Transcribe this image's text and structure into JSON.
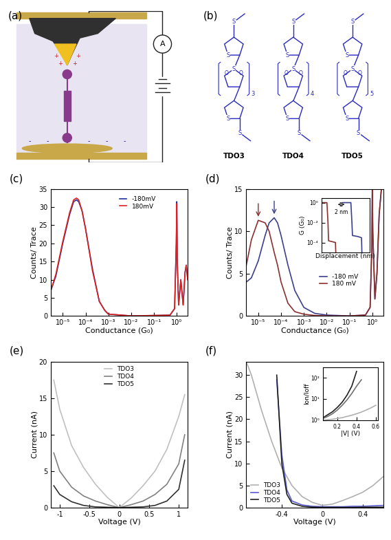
{
  "diagrams": [
    {
      "title": "(a)",
      "ammeter": "A",
      "charges": [
        "+",
        "-"
      ]
    },
    {
      "title": "(b)",
      "atoms": [
        "S",
        "O"
      ],
      "molecules": [
        {
          "label": "TDO3",
          "n": 3
        },
        {
          "label": "TDO4",
          "n": 4
        },
        {
          "label": "TDO5",
          "n": 5
        }
      ]
    }
  ],
  "chart_data": [
    {
      "type": "line",
      "title": "(c)",
      "xlabel": "Conductance (G₀)",
      "ylabel": "Counts/ Trace",
      "log": "x",
      "legend": "upper right",
      "x": [
        3e-06,
        5e-06,
        1e-05,
        2e-05,
        3e-05,
        4e-05,
        5e-05,
        7e-05,
        0.0001,
        0.0002,
        0.0004,
        0.0007,
        0.001,
        0.01,
        0.5,
        0.8,
        0.95,
        1.0,
        1.05,
        1.2,
        1.5,
        1.9,
        2.3,
        2.6,
        3.0
      ],
      "series": [
        {
          "name": "-180mV",
          "color": "#1f2f9f",
          "values": [
            7,
            11,
            20,
            28,
            31.5,
            32,
            31.5,
            29,
            24,
            13,
            4,
            1.5,
            0.5,
            0,
            0.2,
            2,
            20,
            31.5,
            15,
            3,
            10,
            3,
            12,
            14,
            10
          ]
        },
        {
          "name": "180mV",
          "color": "#e0201c",
          "values": [
            7,
            11.5,
            20.5,
            28.5,
            32,
            32.5,
            32,
            29,
            24,
            12.5,
            4,
            1.5,
            0.5,
            0,
            0.2,
            2,
            20,
            31,
            15,
            3,
            10,
            3,
            12,
            14,
            10
          ]
        }
      ],
      "xlim": [
        3e-06,
        3.0
      ],
      "xticks": [
        {
          "value": 1e-05,
          "label": "10⁻⁵"
        },
        {
          "value": 0.0001,
          "label": "10⁻⁴"
        },
        {
          "value": 0.001,
          "label": "10⁻³"
        },
        {
          "value": 0.01,
          "label": "10⁻²"
        },
        {
          "value": 0.1,
          "label": "10⁻¹"
        },
        {
          "value": 1,
          "label": "10⁰"
        }
      ],
      "ylim": [
        0,
        35
      ],
      "yticks": [
        0,
        5,
        10,
        15,
        20,
        25,
        30,
        35
      ]
    },
    {
      "type": "line",
      "title": "(d)",
      "xlabel": "Conductance (G₀)",
      "ylabel": "Counts/ Trace",
      "log": "x",
      "legend": "center right",
      "x": [
        3e-06,
        5e-06,
        1e-05,
        2e-05,
        3e-05,
        5e-05,
        7e-05,
        0.0001,
        0.0002,
        0.0004,
        0.001,
        0.003,
        0.01,
        0.1,
        0.5,
        0.8,
        0.95,
        1.0,
        1.05,
        1.3,
        1.6,
        2.0,
        2.5,
        3.0
      ],
      "series": [
        {
          "name": "-180 mV",
          "color": "#3b3f8c",
          "values": [
            4,
            4.5,
            6.5,
            9.5,
            11,
            11.6,
            11,
            9.5,
            6,
            3,
            1,
            0.3,
            0.1,
            0,
            0.1,
            1,
            8,
            15,
            10,
            2,
            5,
            12,
            15,
            15
          ]
        },
        {
          "name": "180 mV",
          "color": "#8c2f2f",
          "values": [
            6,
            9,
            11.3,
            11,
            10,
            7.5,
            6,
            4,
            1.5,
            0.5,
            0.2,
            0.05,
            0,
            0,
            0.1,
            1,
            8,
            15,
            10,
            2,
            5,
            12,
            15,
            15
          ]
        }
      ],
      "xlim": [
        3e-06,
        3.0
      ],
      "xticks": [
        {
          "value": 1e-05,
          "label": "10⁻⁵"
        },
        {
          "value": 0.0001,
          "label": "10⁻⁴"
        },
        {
          "value": 0.001,
          "label": "10⁻³"
        },
        {
          "value": 0.01,
          "label": "10⁻²"
        },
        {
          "value": 0.1,
          "label": "10⁻¹"
        },
        {
          "value": 1,
          "label": "10⁰"
        }
      ],
      "ylim": [
        0,
        15
      ],
      "yticks": [
        0,
        5,
        10,
        15
      ],
      "inset": {
        "type": "line",
        "xlabel": "Displacement (nm)",
        "ylabel": "G (G₀)",
        "log": "y",
        "tick_labels": "y",
        "annotations": [
          "2 nm"
        ],
        "series": [
          {
            "color": "#8c2f2f",
            "x": [
              0,
              1.0,
              1.2,
              1.3,
              2.0,
              2.6,
              2.7
            ],
            "values": [
              1,
              1,
              0.01,
              0.00015,
              0.00012,
              0.0001,
              3e-06
            ]
          },
          {
            "color": "#3b3f8c",
            "x": [
              4,
              5.5,
              5.7,
              5.8,
              6.8,
              7.5,
              7.6
            ],
            "values": [
              1,
              1,
              0.01,
              0.0005,
              0.0004,
              0.0003,
              3e-06
            ]
          }
        ],
        "xlim": [
          0,
          9
        ],
        "ylim": [
          1e-05,
          3
        ],
        "yticks": [
          {
            "value": 0.0001,
            "label": "10⁻⁴"
          },
          {
            "value": 0.01,
            "label": "10⁻²"
          },
          {
            "value": 1,
            "label": "10⁰"
          }
        ]
      }
    },
    {
      "type": "line",
      "title": "(e)",
      "xlabel": "Voltage (V)",
      "ylabel": "Current (nA)",
      "legend": "upper center",
      "x": [
        -1.1,
        -1,
        -0.8,
        -0.6,
        -0.4,
        -0.2,
        0,
        0.2,
        0.4,
        0.6,
        0.8,
        1,
        1.1
      ],
      "series": [
        {
          "name": "TDO3",
          "color": "#c0c0c0",
          "values": [
            17.5,
            13.5,
            8.5,
            5.5,
            3.2,
            1.4,
            0,
            1.3,
            3,
            5,
            8,
            12.5,
            15.5
          ]
        },
        {
          "name": "TDO4",
          "color": "#808080",
          "values": [
            7.5,
            5,
            2.8,
            1.6,
            0.9,
            0.4,
            0,
            0.4,
            0.9,
            1.8,
            3.2,
            6,
            10
          ]
        },
        {
          "name": "TDO5",
          "color": "#303030",
          "values": [
            3,
            1.8,
            0.8,
            0.3,
            0.1,
            0.05,
            0,
            0.05,
            0.1,
            0.3,
            0.9,
            2.5,
            6.5
          ]
        }
      ],
      "xlim": [
        -1.15,
        1.15
      ],
      "xticks": [
        -1,
        -0.5,
        0,
        0.5,
        1
      ],
      "ylim": [
        0,
        20
      ],
      "yticks": [
        0,
        5,
        10,
        15,
        20
      ]
    },
    {
      "type": "line",
      "title": "(f)",
      "xlabel": "Voltage (V)",
      "ylabel": "Current (nA)",
      "legend": "lower left",
      "x": [
        -0.75,
        -0.7,
        -0.6,
        -0.5,
        -0.45,
        -0.4,
        -0.35,
        -0.3,
        -0.2,
        -0.1,
        0,
        0.1,
        0.2,
        0.3,
        0.4,
        0.5,
        0.6
      ],
      "series": [
        {
          "name": "TDO3",
          "color": "#b0b0b0",
          "values": [
            33,
            30,
            22,
            15,
            12,
            9,
            7,
            5,
            2.5,
            1.2,
            0.5,
            0.8,
            1.6,
            2.5,
            3.5,
            5,
            7
          ]
        },
        {
          "name": "TDO4",
          "color": "#5a5ad0",
          "values": [
            null,
            null,
            null,
            null,
            29,
            12,
            4,
            1.5,
            0.6,
            0.3,
            0.2,
            0.2,
            0.2,
            0.3,
            0.3,
            0.4,
            0.5
          ]
        },
        {
          "name": "TDO5",
          "color": "#202020",
          "values": [
            null,
            null,
            null,
            null,
            30,
            10,
            3,
            1,
            0.3,
            0.1,
            0.05,
            0.05,
            0.05,
            0.05,
            0.1,
            0.1,
            0.1
          ]
        }
      ],
      "xlim": [
        -0.75,
        0.6
      ],
      "xticks": [
        -0.4,
        0,
        0.4
      ],
      "ylim": [
        0,
        33
      ],
      "yticks": [
        0,
        5,
        10,
        15,
        20,
        25,
        30
      ],
      "inset": {
        "type": "line",
        "xlabel": "|V| (V)",
        "ylabel": "Ion/Ioff",
        "log": "y",
        "x": [
          0.05,
          0.1,
          0.15,
          0.2,
          0.25,
          0.3,
          0.35,
          0.4,
          0.45,
          0.5,
          0.55,
          0.6
        ],
        "series": [
          {
            "color": "#202020",
            "values": [
              1.3,
              1.8,
              2.5,
              4,
              7,
              15,
              40,
              200,
              null,
              null,
              null,
              null
            ]
          },
          {
            "color": "#707070",
            "values": [
              1.2,
              1.5,
              2,
              3,
              5,
              9,
              18,
              40,
              80,
              null,
              null,
              null
            ]
          },
          {
            "color": "#b0b0b0",
            "values": [
              1,
              1.05,
              1.1,
              1.2,
              1.3,
              1.5,
              1.7,
              2,
              2.4,
              3,
              3.8,
              5
            ]
          }
        ],
        "xlim": [
          0.05,
          0.62
        ],
        "xticks": [
          0.2,
          0.4,
          0.6
        ],
        "ylim": [
          1,
          300
        ],
        "yticks": [
          {
            "value": 1,
            "label": "10⁰"
          },
          {
            "value": 10,
            "label": "10¹"
          },
          {
            "value": 100,
            "label": "10²"
          }
        ]
      }
    }
  ]
}
